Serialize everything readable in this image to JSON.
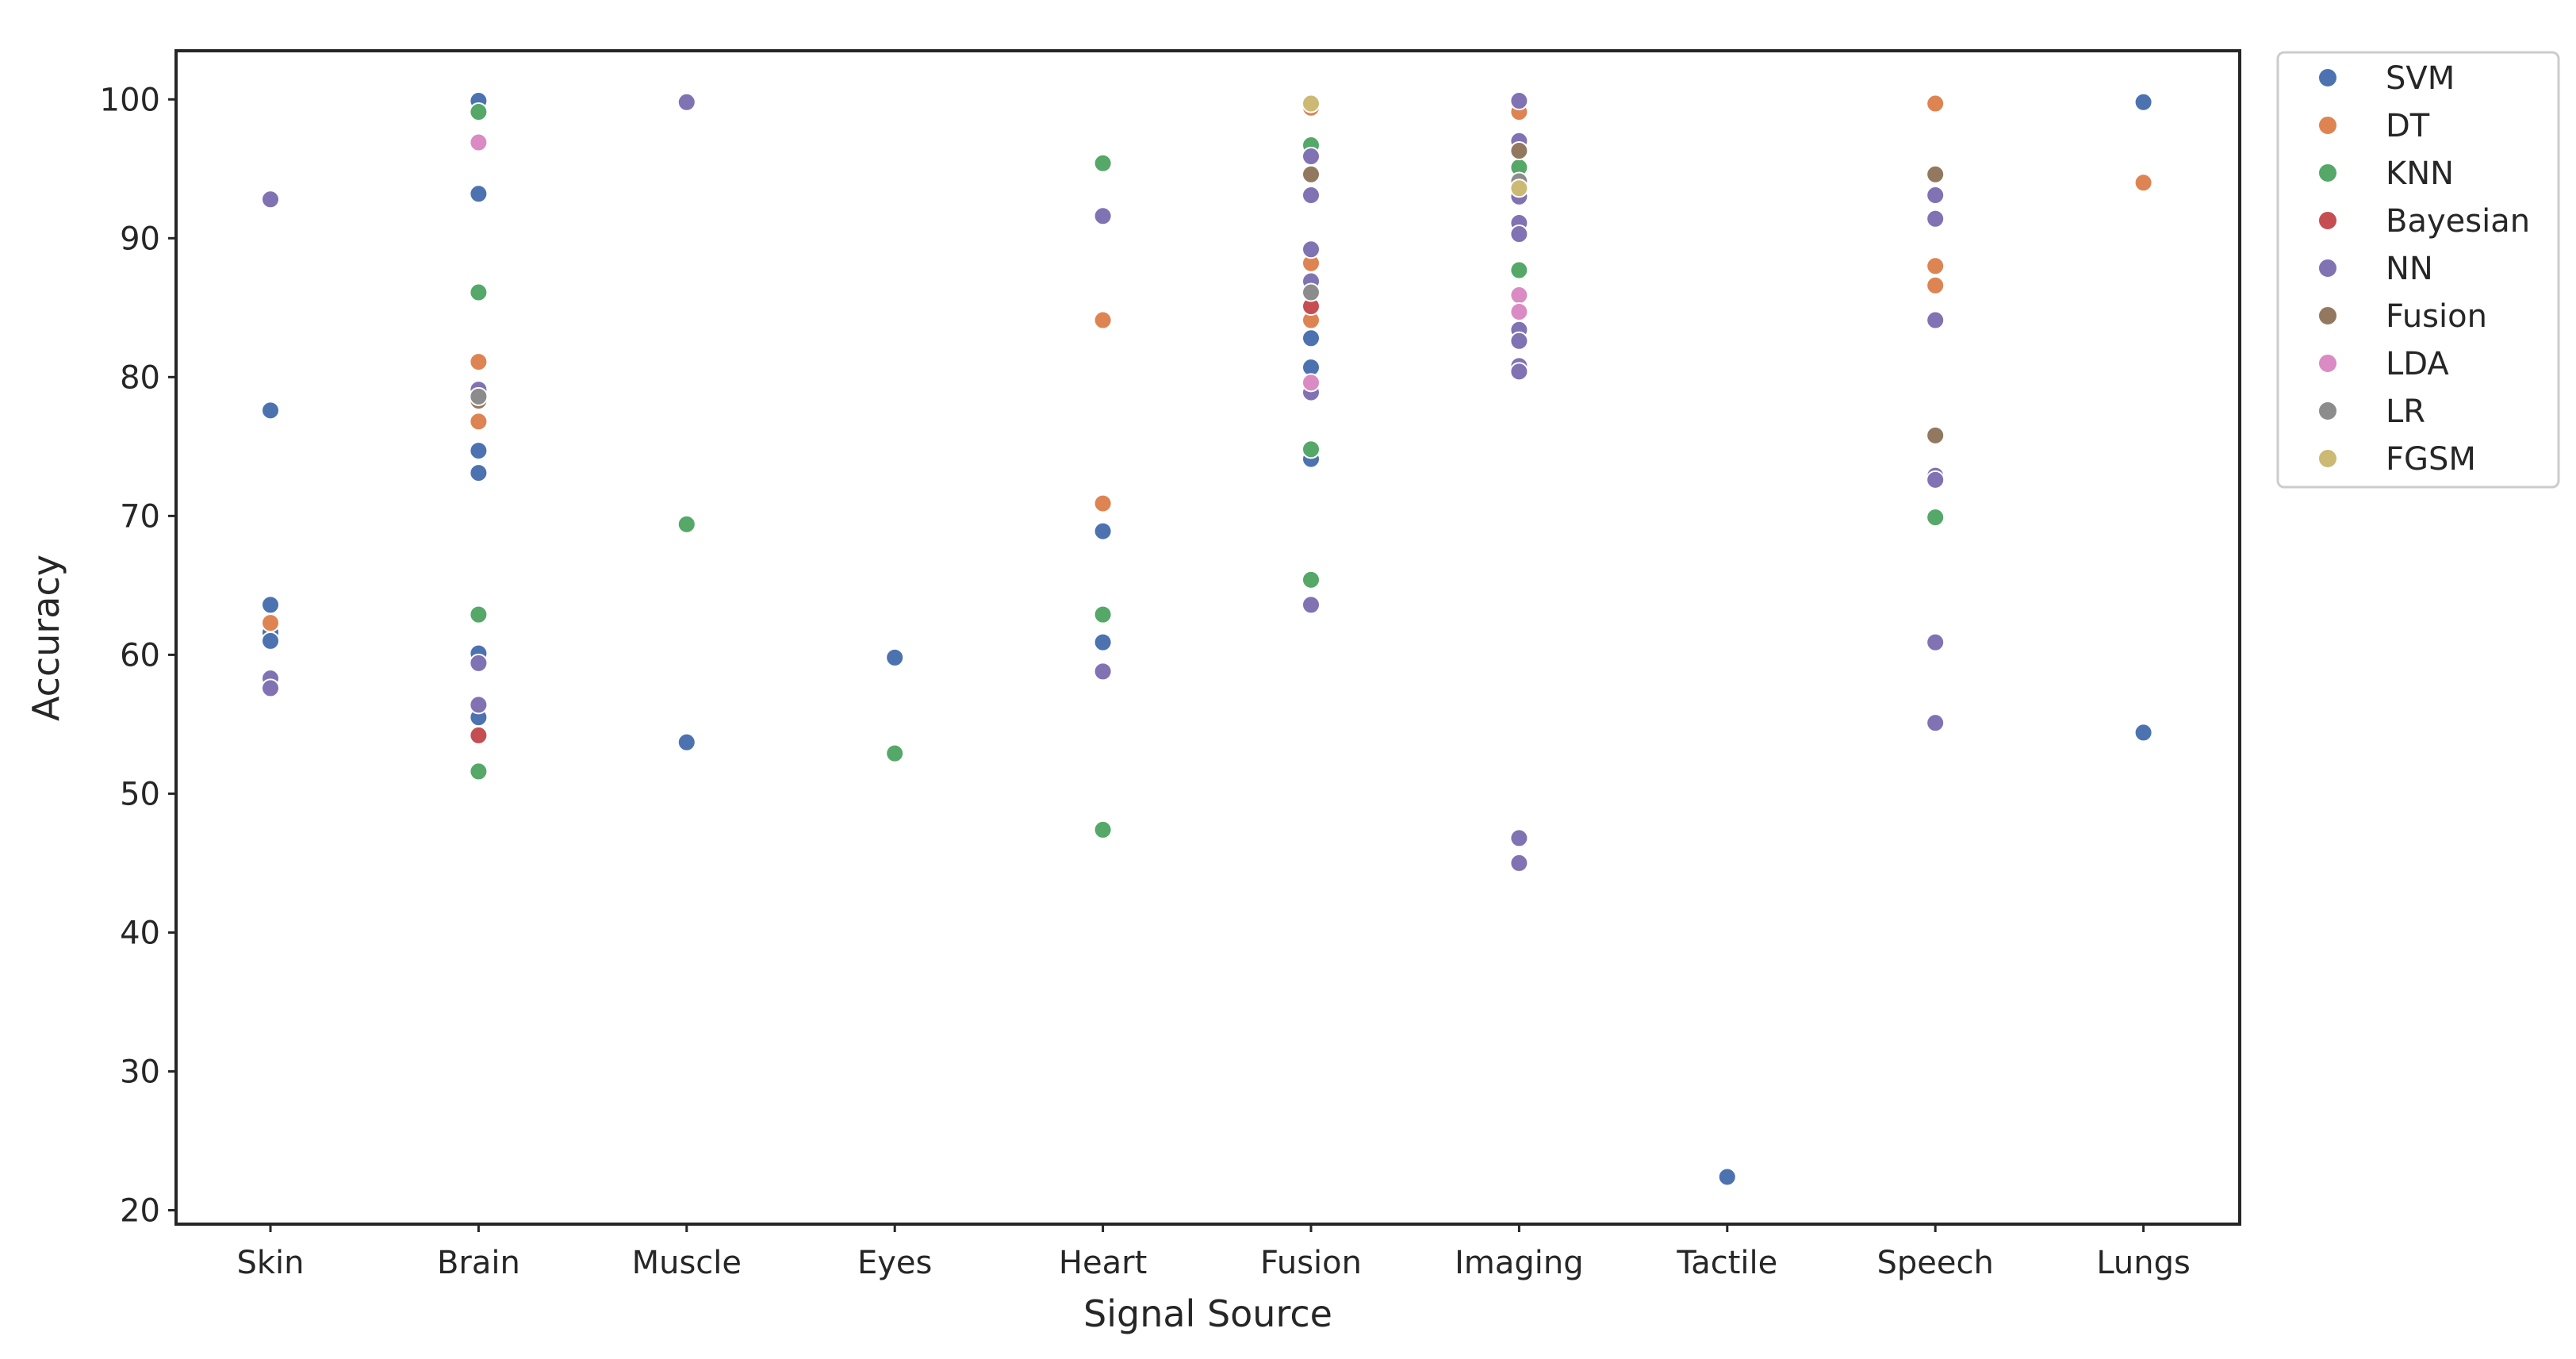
{
  "chart_data": {
    "type": "scatter",
    "title": "",
    "xlabel": "Signal Source",
    "ylabel": "Accuracy",
    "categories": [
      "Skin",
      "Brain",
      "Muscle",
      "Eyes",
      "Heart",
      "Fusion",
      "Imaging",
      "Tactile",
      "Speech",
      "Lungs"
    ],
    "y_ticks": [
      20,
      30,
      40,
      50,
      60,
      70,
      80,
      90,
      100
    ],
    "ylim": [
      19,
      103.5
    ],
    "grid": false,
    "legend_position": "outside-right",
    "series": [
      {
        "name": "SVM",
        "color": "#4c72b0",
        "points": [
          [
            "Skin",
            77.6
          ],
          [
            "Skin",
            63.6
          ],
          [
            "Skin",
            61.6
          ],
          [
            "Skin",
            61.0
          ],
          [
            "Brain",
            99.9
          ],
          [
            "Brain",
            93.2
          ],
          [
            "Brain",
            74.7
          ],
          [
            "Brain",
            73.1
          ],
          [
            "Brain",
            60.1
          ],
          [
            "Brain",
            55.5
          ],
          [
            "Muscle",
            53.7
          ],
          [
            "Eyes",
            59.8
          ],
          [
            "Heart",
            68.9
          ],
          [
            "Heart",
            60.9
          ],
          [
            "Fusion",
            82.8
          ],
          [
            "Fusion",
            80.7
          ],
          [
            "Fusion",
            74.1
          ],
          [
            "Imaging",
            99.6
          ],
          [
            "Tactile",
            22.4
          ],
          [
            "Lungs",
            99.8
          ],
          [
            "Lungs",
            54.4
          ]
        ]
      },
      {
        "name": "DT",
        "color": "#dd8452",
        "points": [
          [
            "Skin",
            62.3
          ],
          [
            "Brain",
            81.1
          ],
          [
            "Brain",
            76.8
          ],
          [
            "Heart",
            84.1
          ],
          [
            "Heart",
            70.9
          ],
          [
            "Fusion",
            99.4
          ],
          [
            "Fusion",
            88.2
          ],
          [
            "Fusion",
            84.1
          ],
          [
            "Imaging",
            99.1
          ],
          [
            "Speech",
            99.7
          ],
          [
            "Speech",
            88.0
          ],
          [
            "Speech",
            86.6
          ],
          [
            "Lungs",
            94.0
          ]
        ]
      },
      {
        "name": "KNN",
        "color": "#55a868",
        "points": [
          [
            "Brain",
            99.1
          ],
          [
            "Brain",
            86.1
          ],
          [
            "Brain",
            62.9
          ],
          [
            "Brain",
            51.6
          ],
          [
            "Muscle",
            69.4
          ],
          [
            "Eyes",
            52.9
          ],
          [
            "Heart",
            95.4
          ],
          [
            "Heart",
            62.9
          ],
          [
            "Heart",
            47.4
          ],
          [
            "Fusion",
            96.7
          ],
          [
            "Fusion",
            74.8
          ],
          [
            "Fusion",
            65.4
          ],
          [
            "Imaging",
            95.1
          ],
          [
            "Imaging",
            87.7
          ],
          [
            "Speech",
            69.9
          ]
        ]
      },
      {
        "name": "Bayesian",
        "color": "#c44e52",
        "points": [
          [
            "Brain",
            54.2
          ],
          [
            "Fusion",
            85.1
          ]
        ]
      },
      {
        "name": "NN",
        "color": "#8172b3",
        "points": [
          [
            "Skin",
            92.8
          ],
          [
            "Skin",
            58.3
          ],
          [
            "Skin",
            57.6
          ],
          [
            "Brain",
            79.1
          ],
          [
            "Brain",
            59.4
          ],
          [
            "Brain",
            56.4
          ],
          [
            "Muscle",
            99.8
          ],
          [
            "Heart",
            91.6
          ],
          [
            "Heart",
            58.8
          ],
          [
            "Fusion",
            95.9
          ],
          [
            "Fusion",
            93.1
          ],
          [
            "Fusion",
            89.2
          ],
          [
            "Fusion",
            86.9
          ],
          [
            "Fusion",
            78.9
          ],
          [
            "Fusion",
            63.6
          ],
          [
            "Imaging",
            99.9
          ],
          [
            "Imaging",
            97.0
          ],
          [
            "Imaging",
            93.0
          ],
          [
            "Imaging",
            91.1
          ],
          [
            "Imaging",
            90.3
          ],
          [
            "Imaging",
            83.4
          ],
          [
            "Imaging",
            82.6
          ],
          [
            "Imaging",
            80.8
          ],
          [
            "Imaging",
            80.4
          ],
          [
            "Imaging",
            46.8
          ],
          [
            "Imaging",
            45.0
          ],
          [
            "Speech",
            93.1
          ],
          [
            "Speech",
            91.4
          ],
          [
            "Speech",
            84.1
          ],
          [
            "Speech",
            72.9
          ],
          [
            "Speech",
            72.6
          ],
          [
            "Speech",
            60.9
          ],
          [
            "Speech",
            55.1
          ]
        ]
      },
      {
        "name": "Fusion",
        "color": "#937860",
        "points": [
          [
            "Brain",
            78.3
          ],
          [
            "Fusion",
            94.6
          ],
          [
            "Imaging",
            96.3
          ],
          [
            "Speech",
            94.6
          ],
          [
            "Speech",
            75.8
          ]
        ]
      },
      {
        "name": "LDA",
        "color": "#da8bc3",
        "points": [
          [
            "Brain",
            96.9
          ],
          [
            "Fusion",
            79.6
          ],
          [
            "Imaging",
            85.9
          ],
          [
            "Imaging",
            84.7
          ]
        ]
      },
      {
        "name": "LR",
        "color": "#8c8c8c",
        "points": [
          [
            "Brain",
            78.6
          ],
          [
            "Fusion",
            86.1
          ],
          [
            "Imaging",
            94.1
          ]
        ]
      },
      {
        "name": "FGSM",
        "color": "#ccb974",
        "points": [
          [
            "Fusion",
            99.7
          ],
          [
            "Imaging",
            93.6
          ]
        ]
      }
    ]
  }
}
